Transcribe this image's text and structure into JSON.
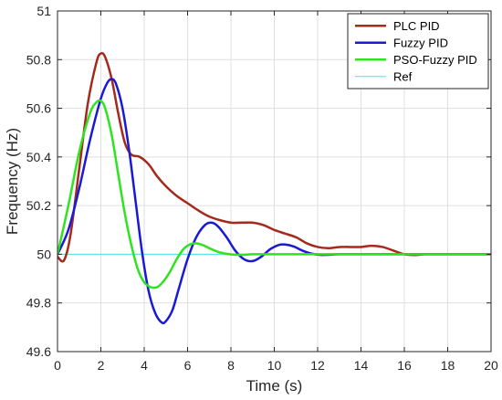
{
  "chart_data": {
    "type": "line",
    "title": "",
    "xlabel": "Time (s)",
    "ylabel": "Frequency (Hz)",
    "xlim": [
      0,
      20
    ],
    "ylim": [
      49.6,
      51
    ],
    "xticks": [
      0,
      2,
      4,
      6,
      8,
      10,
      12,
      14,
      16,
      18,
      20
    ],
    "yticks": [
      49.6,
      49.8,
      50,
      50.2,
      50.4,
      50.6,
      50.8,
      51
    ],
    "ytick_labels": [
      "49.6",
      "49.8",
      "50",
      "50.2",
      "50.4",
      "50.6",
      "50.8",
      "51"
    ],
    "grid": true,
    "legend_position": "top-right",
    "series": [
      {
        "name": "PLC PID",
        "color": "#a52a1e",
        "x": [
          0,
          0.3,
          0.6,
          1.0,
          1.4,
          1.8,
          2.0,
          2.2,
          2.5,
          2.8,
          3.1,
          3.4,
          3.8,
          4.2,
          4.6,
          5.0,
          5.5,
          6.0,
          6.5,
          7.0,
          7.5,
          8.0,
          8.5,
          9.0,
          9.5,
          10.0,
          10.5,
          11.0,
          11.5,
          12.0,
          12.5,
          13.0,
          13.5,
          14.0,
          14.5,
          15.0,
          15.5,
          16.0,
          16.5,
          17.0,
          18.0,
          19.0,
          20.0
        ],
        "values": [
          49.99,
          49.975,
          50.08,
          50.35,
          50.62,
          50.79,
          50.825,
          50.81,
          50.72,
          50.58,
          50.46,
          50.41,
          50.4,
          50.37,
          50.32,
          50.28,
          50.24,
          50.21,
          50.18,
          50.155,
          50.14,
          50.13,
          50.13,
          50.13,
          50.12,
          50.1,
          50.085,
          50.07,
          50.045,
          50.03,
          50.025,
          50.03,
          50.03,
          50.03,
          50.035,
          50.03,
          50.015,
          50.0,
          49.997,
          50.0,
          50.0,
          50.0,
          50.0
        ]
      },
      {
        "name": "Fuzzy PID",
        "color": "#1a1ad6",
        "x": [
          0,
          0.5,
          1.0,
          1.5,
          2.0,
          2.3,
          2.5,
          2.7,
          3.0,
          3.3,
          3.6,
          3.9,
          4.2,
          4.5,
          4.8,
          5.0,
          5.3,
          5.6,
          6.0,
          6.4,
          6.8,
          7.1,
          7.4,
          7.8,
          8.2,
          8.6,
          9.0,
          9.4,
          9.8,
          10.2,
          10.5,
          10.9,
          11.3,
          11.7,
          12.1,
          12.5,
          13.0,
          14.0,
          16.0,
          18.0,
          20.0
        ],
        "values": [
          50.0,
          50.1,
          50.27,
          50.47,
          50.64,
          50.705,
          50.72,
          50.7,
          50.6,
          50.43,
          50.22,
          50.01,
          49.85,
          49.76,
          49.72,
          49.725,
          49.77,
          49.86,
          49.98,
          50.07,
          50.12,
          50.13,
          50.115,
          50.07,
          50.015,
          49.98,
          49.972,
          49.99,
          50.02,
          50.038,
          50.04,
          50.032,
          50.015,
          50.003,
          49.998,
          49.998,
          50.0,
          50.0,
          50.0,
          50.0,
          50.0
        ]
      },
      {
        "name": "PSO-Fuzzy PID",
        "color": "#2ee31f",
        "x": [
          0,
          0.5,
          1.0,
          1.5,
          1.8,
          2.0,
          2.2,
          2.5,
          2.8,
          3.1,
          3.4,
          3.7,
          4.0,
          4.3,
          4.6,
          4.9,
          5.2,
          5.5,
          5.8,
          6.1,
          6.4,
          6.7,
          7.0,
          7.4,
          7.8,
          8.2,
          8.6,
          9.0,
          10.0,
          12.0,
          14.0,
          16.0,
          18.0,
          20.0
        ],
        "values": [
          50.0,
          50.2,
          50.42,
          50.58,
          50.625,
          50.63,
          50.6,
          50.49,
          50.33,
          50.17,
          50.04,
          49.94,
          49.885,
          49.865,
          49.865,
          49.89,
          49.93,
          49.98,
          50.02,
          50.04,
          50.045,
          50.038,
          50.025,
          50.01,
          50.002,
          49.998,
          49.998,
          50.0,
          50.0,
          50.0,
          50.0,
          50.0,
          50.0,
          50.0
        ]
      },
      {
        "name": "Ref",
        "color": "#4fe0e6",
        "x": [
          0,
          20
        ],
        "values": [
          50.0,
          50.0
        ]
      }
    ]
  }
}
